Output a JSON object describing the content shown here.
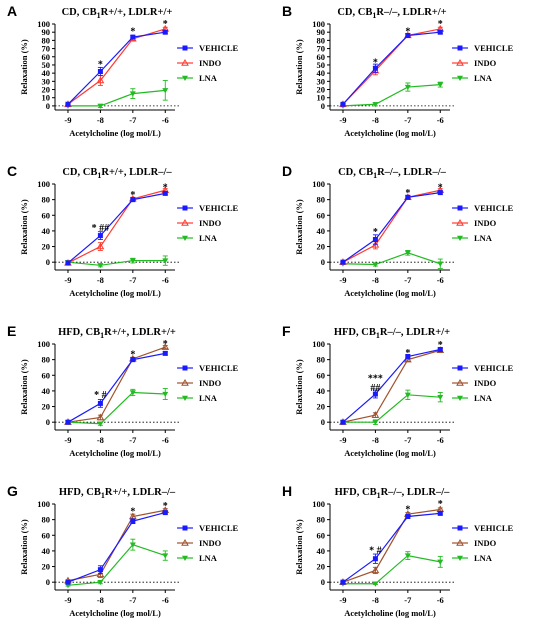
{
  "colors": {
    "VEHICLE": "#1a1aff",
    "INDO_red": "#ff3b30",
    "INDO_brown": "#a0522d",
    "LNA": "#22bb22"
  },
  "chart_data": [
    {
      "type": "line",
      "letter": "A",
      "title": "CD, CB1R+/+, LDLR+/+",
      "xlabel": "Acetylcholine (log mol/L)",
      "ylabel": "Relaxation (%)",
      "x": [
        -9,
        -8,
        -7,
        -6
      ],
      "xlim": [
        -9.4,
        -5.7
      ],
      "ylim": [
        -5,
        100
      ],
      "yticks": [
        0,
        10,
        20,
        30,
        40,
        50,
        60,
        70,
        80,
        90,
        100
      ],
      "indo_color": "red",
      "series": [
        {
          "name": "VEHICLE",
          "values": [
            2,
            42,
            84,
            90
          ],
          "err": [
            1,
            5,
            2,
            2
          ]
        },
        {
          "name": "INDO",
          "values": [
            2,
            31,
            82,
            94
          ],
          "err": [
            1,
            6,
            2,
            2
          ]
        },
        {
          "name": "LNA",
          "values": [
            0,
            0,
            15,
            19
          ],
          "err": [
            1,
            2,
            6,
            12
          ]
        }
      ],
      "annotations": [
        {
          "x": -8,
          "y": 52,
          "text": "*"
        },
        {
          "x": -7,
          "y": 92,
          "text": "*"
        },
        {
          "x": -6,
          "y": 101,
          "text": "*"
        }
      ]
    },
    {
      "type": "line",
      "letter": "B",
      "title": "CD, CB1R–/–, LDLR+/+",
      "xlabel": "Acetylcholine (log mol/L)",
      "ylabel": "Relaxation (%)",
      "x": [
        -9,
        -8,
        -7,
        -6
      ],
      "xlim": [
        -9.4,
        -5.7
      ],
      "ylim": [
        -5,
        100
      ],
      "yticks": [
        0,
        10,
        20,
        30,
        40,
        50,
        60,
        70,
        80,
        90,
        100
      ],
      "indo_color": "red",
      "series": [
        {
          "name": "VEHICLE",
          "values": [
            2,
            46,
            86,
            90
          ],
          "err": [
            1,
            5,
            2,
            2
          ]
        },
        {
          "name": "INDO",
          "values": [
            2,
            43,
            86,
            94
          ],
          "err": [
            1,
            5,
            2,
            2
          ]
        },
        {
          "name": "LNA",
          "values": [
            0,
            2,
            23,
            26
          ],
          "err": [
            1,
            2,
            5,
            3
          ]
        }
      ],
      "annotations": [
        {
          "x": -8,
          "y": 54,
          "text": "*"
        },
        {
          "x": -7,
          "y": 92,
          "text": "*"
        },
        {
          "x": -6,
          "y": 101,
          "text": "*"
        }
      ]
    },
    {
      "type": "line",
      "letter": "C",
      "title": "CD, CB1R+/+, LDLR–/–",
      "xlabel": "Acetylcholine (log mol/L)",
      "ylabel": "Relaxation (%)",
      "x": [
        -9,
        -8,
        -7,
        -6
      ],
      "xlim": [
        -9.4,
        -5.7
      ],
      "ylim": [
        -10,
        100
      ],
      "yticks": [
        0,
        20,
        40,
        60,
        80,
        100
      ],
      "indo_color": "red",
      "series": [
        {
          "name": "VEHICLE",
          "values": [
            -1,
            34,
            80,
            88
          ],
          "err": [
            1,
            5,
            2,
            2
          ]
        },
        {
          "name": "INDO",
          "values": [
            -1,
            20,
            81,
            92
          ],
          "err": [
            1,
            5,
            2,
            2
          ]
        },
        {
          "name": "LNA",
          "values": [
            0,
            -4,
            2,
            2
          ],
          "err": [
            1,
            2,
            3,
            6
          ]
        }
      ],
      "annotations": [
        {
          "x": -8,
          "y": 45,
          "text": "* ##"
        },
        {
          "x": -7,
          "y": 87,
          "text": "*"
        },
        {
          "x": -6,
          "y": 97,
          "text": "*"
        }
      ]
    },
    {
      "type": "line",
      "letter": "D",
      "title": "CD, CB1R–/–, LDLR–/–",
      "xlabel": "Acetylcholine (log mol/L)",
      "ylabel": "Relaxation (%)",
      "x": [
        -9,
        -8,
        -7,
        -6
      ],
      "xlim": [
        -9.4,
        -5.7
      ],
      "ylim": [
        -10,
        100
      ],
      "yticks": [
        0,
        20,
        40,
        60,
        80,
        100
      ],
      "indo_color": "red",
      "series": [
        {
          "name": "VEHICLE",
          "values": [
            0,
            29,
            83,
            89
          ],
          "err": [
            1,
            6,
            2,
            2
          ]
        },
        {
          "name": "INDO",
          "values": [
            0,
            22,
            83,
            92
          ],
          "err": [
            1,
            5,
            2,
            2
          ]
        },
        {
          "name": "LNA",
          "values": [
            -2,
            -3,
            12,
            -2
          ],
          "err": [
            1,
            2,
            3,
            6
          ]
        }
      ],
      "annotations": [
        {
          "x": -8,
          "y": 40,
          "text": "*"
        },
        {
          "x": -7,
          "y": 90,
          "text": "*"
        },
        {
          "x": -6,
          "y": 97,
          "text": "*"
        }
      ]
    },
    {
      "type": "line",
      "letter": "E",
      "title": "HFD, CB1R+/+, LDLR+/+",
      "xlabel": "Acetylcholine (log mol/L)",
      "ylabel": "Relaxation (%)",
      "x": [
        -9,
        -8,
        -7,
        -6
      ],
      "xlim": [
        -9.4,
        -5.7
      ],
      "ylim": [
        -10,
        100
      ],
      "yticks": [
        0,
        20,
        40,
        60,
        80,
        100
      ],
      "indo_color": "brown",
      "series": [
        {
          "name": "VEHICLE",
          "values": [
            0,
            24,
            80,
            88
          ],
          "err": [
            1,
            5,
            2,
            2
          ]
        },
        {
          "name": "INDO",
          "values": [
            0,
            6,
            81,
            96
          ],
          "err": [
            1,
            3,
            2,
            2
          ]
        },
        {
          "name": "LNA",
          "values": [
            0,
            -2,
            38,
            36
          ],
          "err": [
            1,
            2,
            4,
            7
          ]
        }
      ],
      "annotations": [
        {
          "x": -8,
          "y": 36,
          "text": "* #"
        },
        {
          "x": -7,
          "y": 88,
          "text": "*"
        },
        {
          "x": -6,
          "y": 101,
          "text": "*"
        }
      ]
    },
    {
      "type": "line",
      "letter": "F",
      "title": "HFD, CB1R–/–, LDLR+/+",
      "xlabel": "Acetylcholine (log mol/L)",
      "ylabel": "Relaxation (%)",
      "x": [
        -9,
        -8,
        -7,
        -6
      ],
      "xlim": [
        -9.4,
        -5.7
      ],
      "ylim": [
        -10,
        100
      ],
      "yticks": [
        0,
        20,
        40,
        60,
        80,
        100
      ],
      "indo_color": "brown",
      "series": [
        {
          "name": "VEHICLE",
          "values": [
            0,
            36,
            84,
            93
          ],
          "err": [
            1,
            5,
            2,
            2
          ]
        },
        {
          "name": "INDO",
          "values": [
            0,
            9,
            80,
            92
          ],
          "err": [
            1,
            3,
            2,
            2
          ]
        },
        {
          "name": "LNA",
          "values": [
            0,
            0,
            35,
            32
          ],
          "err": [
            1,
            3,
            6,
            6
          ]
        }
      ],
      "annotations": [
        {
          "x": -8,
          "y": 57,
          "text": "***"
        },
        {
          "x": -8,
          "y": 45,
          "text": "##"
        },
        {
          "x": -7,
          "y": 90,
          "text": "*"
        },
        {
          "x": -6,
          "y": 100,
          "text": "*"
        }
      ]
    },
    {
      "type": "line",
      "letter": "G",
      "title": "HFD, CB1R+/+, LDLR–/–",
      "xlabel": "Acetylcholine (log mol/L)",
      "ylabel": "Relaxation (%)",
      "x": [
        -9,
        -8,
        -7,
        -6
      ],
      "xlim": [
        -9.4,
        -5.7
      ],
      "ylim": [
        -10,
        100
      ],
      "yticks": [
        0,
        20,
        40,
        60,
        80,
        100
      ],
      "indo_color": "brown",
      "series": [
        {
          "name": "VEHICLE",
          "values": [
            0,
            16,
            78,
            89
          ],
          "err": [
            1,
            5,
            3,
            2
          ]
        },
        {
          "name": "INDO",
          "values": [
            2,
            10,
            84,
            92
          ],
          "err": [
            1,
            4,
            3,
            2
          ]
        },
        {
          "name": "LNA",
          "values": [
            -4,
            0,
            48,
            34
          ],
          "err": [
            1,
            2,
            7,
            6
          ]
        }
      ],
      "annotations": [
        {
          "x": -7,
          "y": 92,
          "text": "*"
        },
        {
          "x": -6,
          "y": 99,
          "text": "*"
        }
      ]
    },
    {
      "type": "line",
      "letter": "H",
      "title": "HFD, CB1R–/–, LDLR–/–",
      "xlabel": "Acetylcholine (log mol/L)",
      "ylabel": "Relaxation (%)",
      "x": [
        -9,
        -8,
        -7,
        -6
      ],
      "xlim": [
        -9.4,
        -5.7
      ],
      "ylim": [
        -10,
        100
      ],
      "yticks": [
        0,
        20,
        40,
        60,
        80,
        100
      ],
      "indo_color": "brown",
      "series": [
        {
          "name": "VEHICLE",
          "values": [
            0,
            30,
            84,
            88
          ],
          "err": [
            1,
            6,
            2,
            2
          ]
        },
        {
          "name": "INDO",
          "values": [
            0,
            15,
            87,
            93
          ],
          "err": [
            1,
            4,
            2,
            2
          ]
        },
        {
          "name": "LNA",
          "values": [
            -2,
            -2,
            34,
            26
          ],
          "err": [
            1,
            1,
            5,
            7
          ]
        }
      ],
      "annotations": [
        {
          "x": -8,
          "y": 42,
          "text": "* #"
        },
        {
          "x": -7,
          "y": 94,
          "text": "*"
        },
        {
          "x": -6,
          "y": 101,
          "text": "*"
        }
      ]
    }
  ]
}
